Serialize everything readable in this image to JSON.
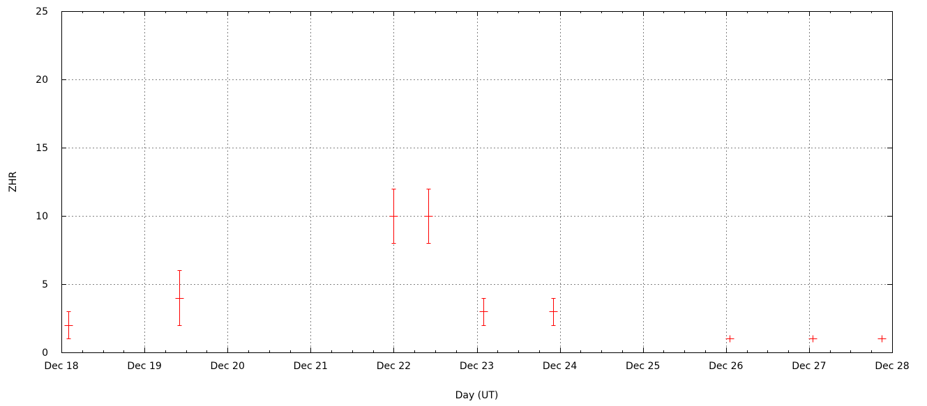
{
  "chart_data": {
    "type": "scatter",
    "title": "",
    "xlabel": "Day (UT)",
    "ylabel": "ZHR",
    "x_tick_labels": [
      "Dec 18",
      "Dec 19",
      "Dec 20",
      "Dec 21",
      "Dec 22",
      "Dec 23",
      "Dec 24",
      "Dec 25",
      "Dec 26",
      "Dec 27",
      "Dec 28"
    ],
    "x_range": [
      "Dec 18",
      "Dec 28"
    ],
    "y_ticks": [
      0,
      5,
      10,
      15,
      20,
      25
    ],
    "ylim": [
      0,
      25
    ],
    "grid": true,
    "marker_color": "#ff0000",
    "points": [
      {
        "x": "Dec 18 02:00",
        "y": 2,
        "err_low": 1,
        "err_high": 3
      },
      {
        "x": "Dec 19 10:00",
        "y": 4,
        "err_low": 2,
        "err_high": 6
      },
      {
        "x": "Dec 22 00:00",
        "y": 10,
        "err_low": 8,
        "err_high": 12
      },
      {
        "x": "Dec 22 10:00",
        "y": 10,
        "err_low": 8,
        "err_high": 12
      },
      {
        "x": "Dec 23 02:00",
        "y": 3,
        "err_low": 2,
        "err_high": 4
      },
      {
        "x": "Dec 23 22:00",
        "y": 3,
        "err_low": 2,
        "err_high": 4
      },
      {
        "x": "Dec 26 01:00",
        "y": 1,
        "err_low": 1,
        "err_high": 1
      },
      {
        "x": "Dec 27 01:00",
        "y": 1,
        "err_low": 1,
        "err_high": 1
      },
      {
        "x": "Dec 27 21:00",
        "y": 1,
        "err_low": 1,
        "err_high": 1
      }
    ]
  }
}
